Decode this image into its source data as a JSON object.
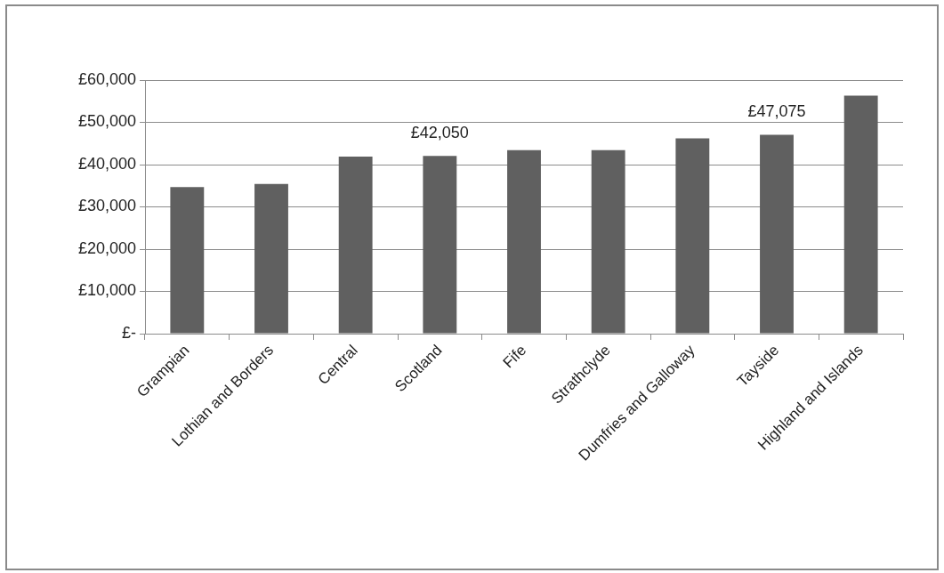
{
  "chart_data": {
    "type": "bar",
    "categories": [
      "Grampian",
      "Lothian and Borders",
      "Central",
      "Scotland",
      "Fife",
      "Strathclyde",
      "Dumfries and Galloway",
      "Tayside",
      "Highland and Islands"
    ],
    "values": [
      34700,
      35400,
      41900,
      42050,
      43400,
      43400,
      46200,
      47075,
      56300
    ],
    "value_labels": [
      null,
      null,
      null,
      "£42,050",
      null,
      null,
      null,
      "£47,075",
      null
    ],
    "color": "#606060",
    "ylim": [
      0,
      60000
    ],
    "yticks": [
      {
        "value": 0,
        "label": "£-"
      },
      {
        "value": 10000,
        "label": "£10,000"
      },
      {
        "value": 20000,
        "label": "£20,000"
      },
      {
        "value": 30000,
        "label": "£30,000"
      },
      {
        "value": 40000,
        "label": "£40,000"
      },
      {
        "value": 50000,
        "label": "£50,000"
      },
      {
        "value": 60000,
        "label": "£60,000"
      }
    ],
    "grid": "y"
  }
}
